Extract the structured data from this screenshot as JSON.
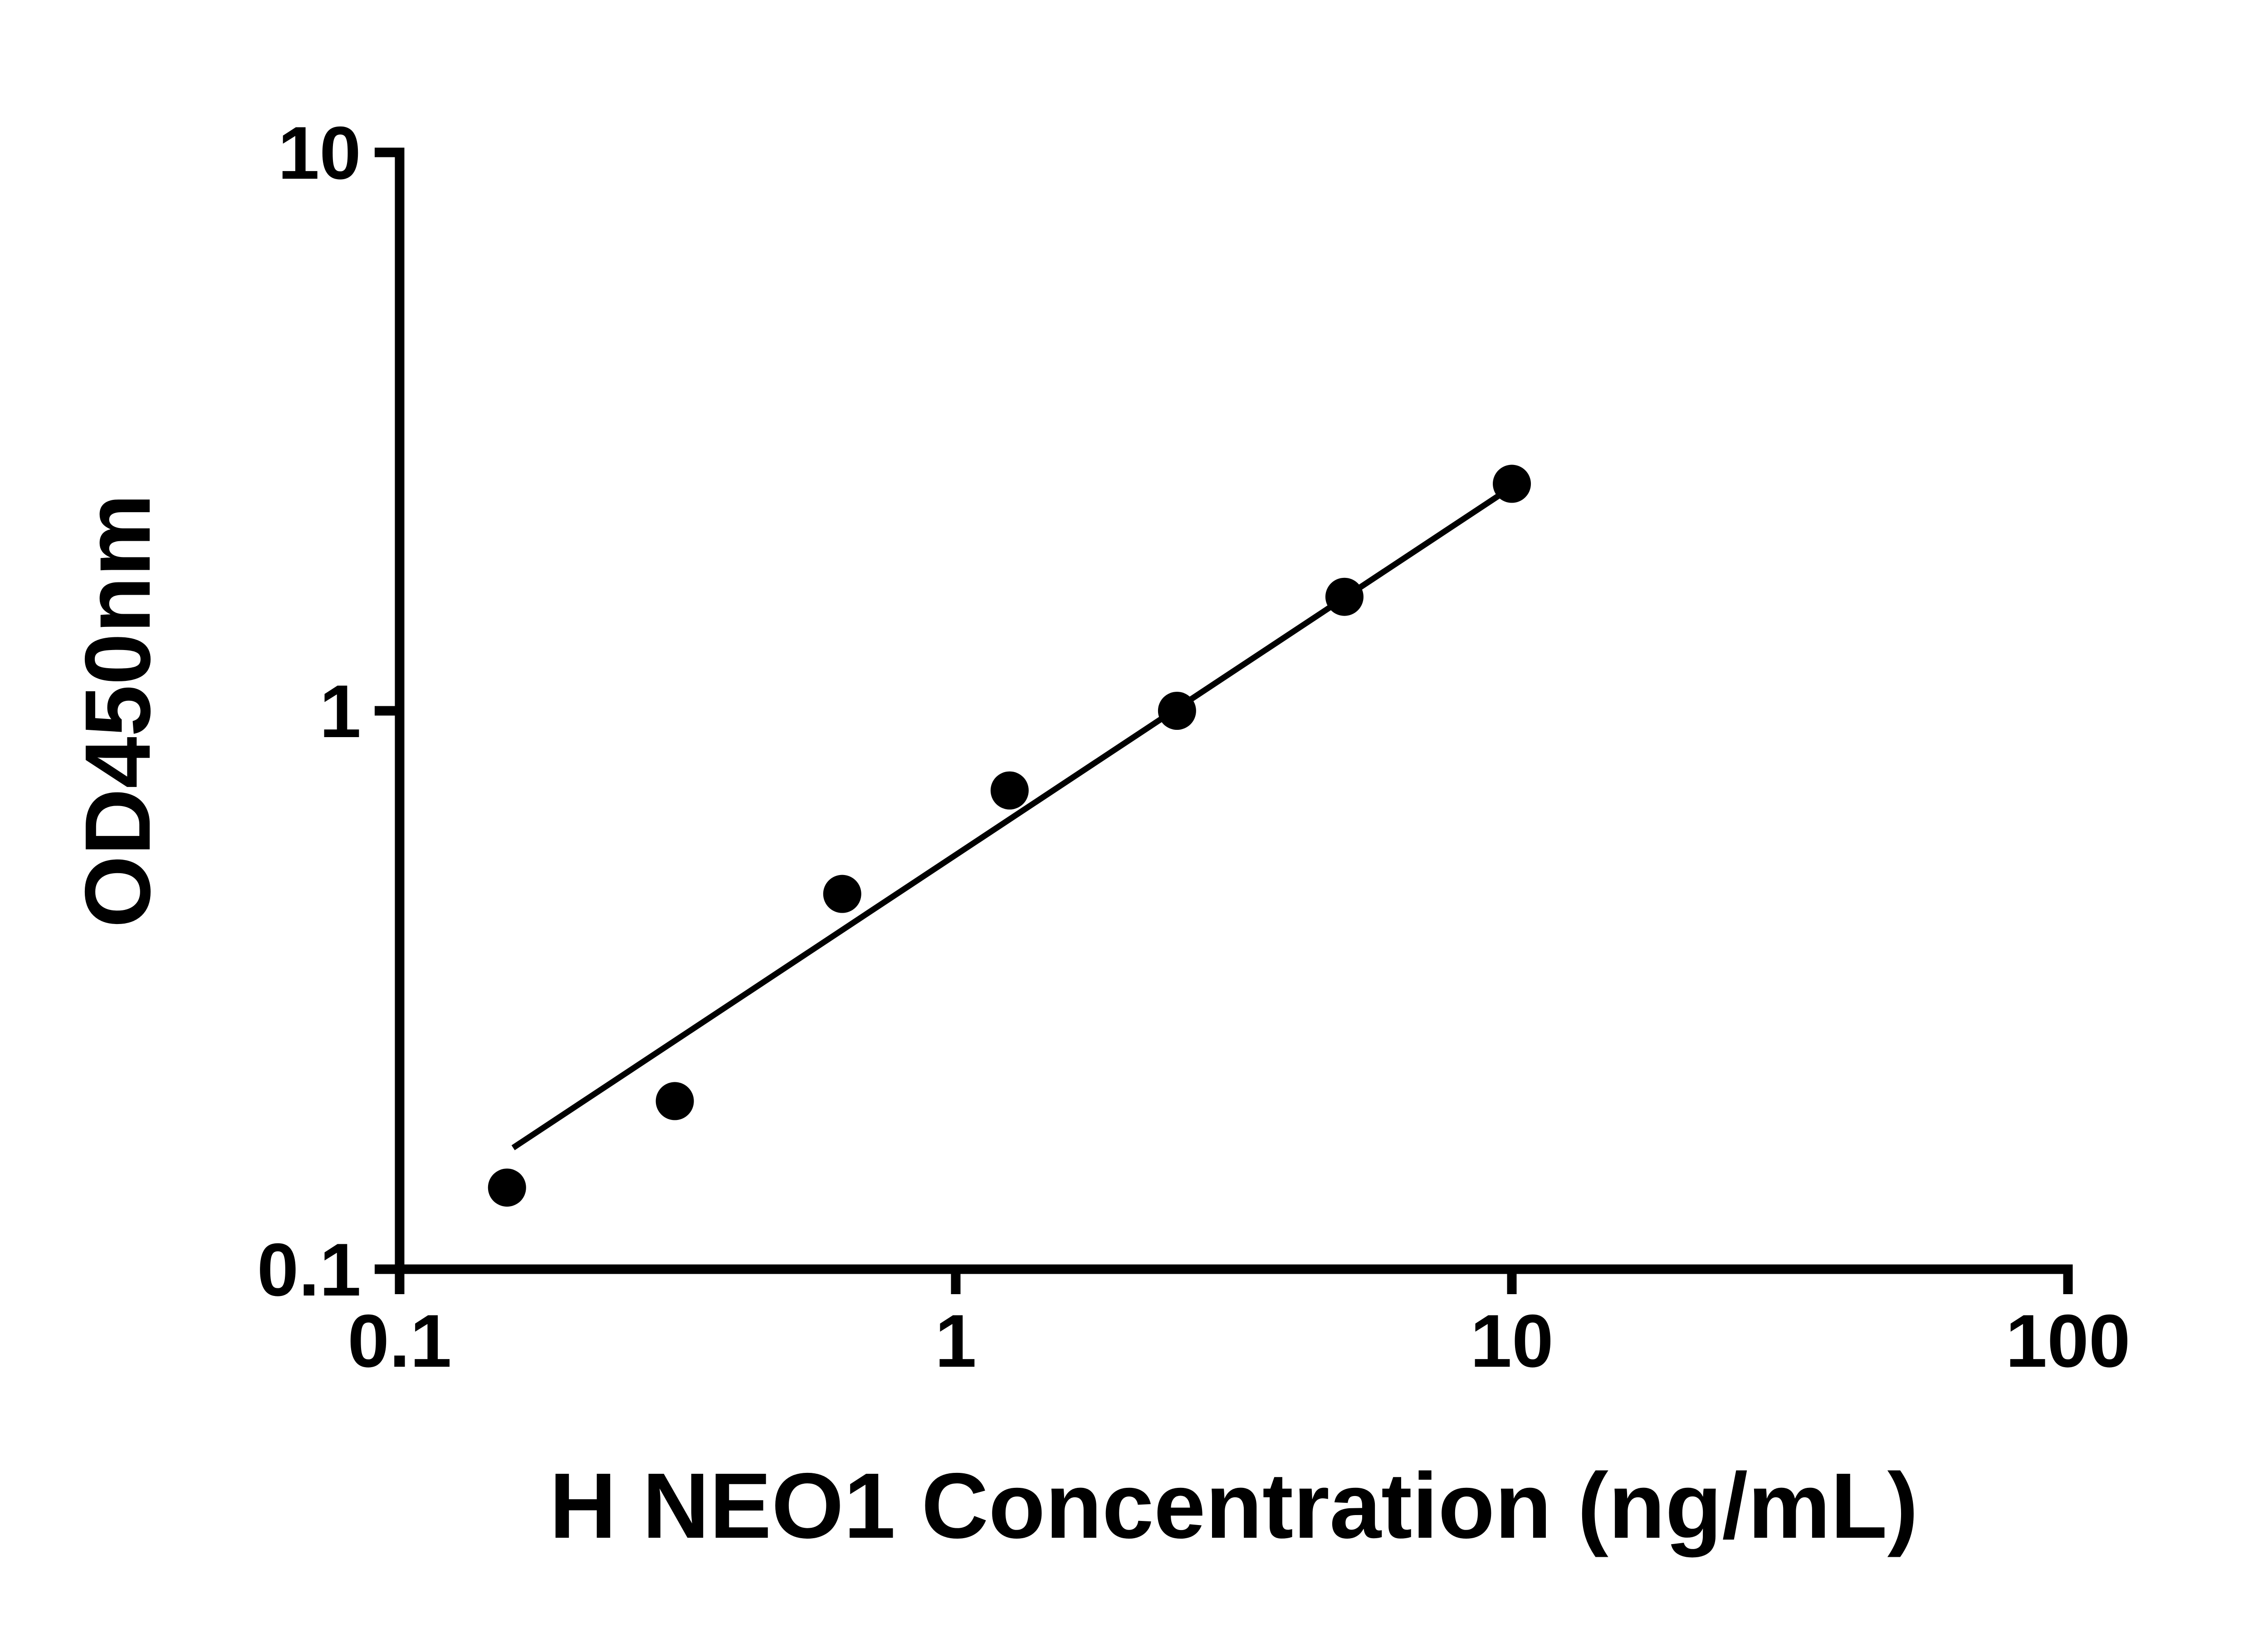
{
  "figure": {
    "title": "",
    "background_color": "#ffffff"
  },
  "colors": {
    "axis": "#000000",
    "marker": "#000000",
    "trend_line": "#000000",
    "text": "#000000",
    "background": "#ffffff"
  },
  "chart_data": {
    "type": "scatter",
    "title": "",
    "xlabel": "H NEO1 Concentration (ng/mL)",
    "ylabel": "OD450nm",
    "x_scale": "log",
    "y_scale": "log",
    "xlim": [
      0.1,
      100
    ],
    "ylim": [
      0.1,
      10
    ],
    "x_ticks": [
      0.1,
      1,
      10,
      100
    ],
    "x_tick_labels": [
      "0.1",
      "1",
      "10",
      "100"
    ],
    "y_ticks": [
      0.1,
      1,
      10
    ],
    "y_tick_labels": [
      "0.1",
      "1",
      "10"
    ],
    "grid": false,
    "legend": false,
    "series": [
      {
        "name": "fit-line",
        "type": "line",
        "x": [
          0.16,
          9.6
        ],
        "y": [
          0.165,
          2.45
        ],
        "line_color": "#000000"
      },
      {
        "name": "standard-points",
        "type": "scatter",
        "x": [
          0.156,
          0.3125,
          0.625,
          1.25,
          2.5,
          5,
          10
        ],
        "y": [
          0.14,
          0.2,
          0.47,
          0.72,
          1.0,
          1.6,
          2.55
        ],
        "marker_color": "#000000"
      }
    ]
  }
}
